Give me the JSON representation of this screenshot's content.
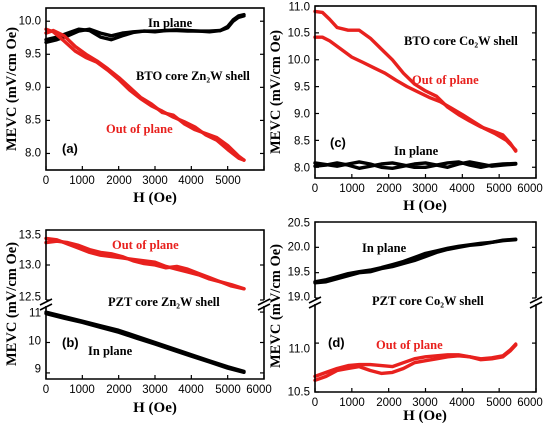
{
  "colors": {
    "in_plane": "#000000",
    "out_of_plane": "#e8211e",
    "axis": "#000000"
  },
  "chart_data": [
    {
      "type": "line",
      "panel_label": "(a)",
      "xlabel": "H (Oe)",
      "ylabel": "MEVC (mV/cm Oe)",
      "xlim": [
        0,
        6000
      ],
      "ylim": [
        7.75,
        10.2
      ],
      "xticks": [
        "0",
        "1000",
        "2000",
        "3000",
        "4000",
        "5000"
      ],
      "yticks": [
        "8.0",
        "8.5",
        "9.0",
        "9.5",
        "10.0"
      ],
      "annotations": [
        {
          "text": "In plane",
          "color": "#000000"
        },
        {
          "text": "BTO core Zn₂W shell",
          "color": "#000000"
        },
        {
          "text": "Out of plane",
          "color": "#e8211e"
        }
      ],
      "series": [
        {
          "name": "In plane",
          "color": "#000000",
          "x": [
            0,
            300,
            600,
            900,
            1200,
            1500,
            1800,
            2100,
            2400,
            2700,
            3000,
            3300,
            3600,
            3900,
            4200,
            4500,
            4800,
            5000,
            5150,
            5300,
            5450
          ],
          "y": [
            9.68,
            9.72,
            9.78,
            9.85,
            9.88,
            9.82,
            9.78,
            9.82,
            9.84,
            9.85,
            9.85,
            9.86,
            9.86,
            9.85,
            9.85,
            9.85,
            9.86,
            9.9,
            10.0,
            10.06,
            10.08
          ]
        },
        {
          "name": "In plane",
          "color": "#000000",
          "x": [
            0,
            300,
            600,
            900,
            1200,
            1500,
            1800,
            2100,
            2400,
            2700,
            3000,
            3300,
            3600,
            3900,
            4200,
            4500,
            4800,
            5000,
            5150,
            5300,
            5450
          ],
          "y": [
            9.72,
            9.76,
            9.82,
            9.88,
            9.86,
            9.76,
            9.72,
            9.78,
            9.83,
            9.85,
            9.84,
            9.86,
            9.87,
            9.86,
            9.85,
            9.84,
            9.86,
            9.92,
            10.02,
            10.08,
            10.1
          ]
        },
        {
          "name": "Out of plane",
          "color": "#e8211e",
          "x": [
            0,
            200,
            500,
            800,
            1100,
            1400,
            1700,
            2000,
            2300,
            2600,
            2900,
            3200,
            3500,
            3800,
            4100,
            4400,
            4700,
            5000,
            5300,
            5450
          ],
          "y": [
            9.88,
            9.84,
            9.7,
            9.55,
            9.45,
            9.38,
            9.26,
            9.12,
            8.96,
            8.83,
            8.72,
            8.64,
            8.55,
            8.48,
            8.4,
            8.28,
            8.2,
            8.06,
            7.93,
            7.9
          ]
        },
        {
          "name": "Out of plane",
          "color": "#e8211e",
          "x": [
            0,
            200,
            500,
            800,
            1100,
            1400,
            1700,
            2000,
            2300,
            2600,
            2900,
            3200,
            3500,
            3800,
            4100,
            4400,
            4700,
            5000,
            5300,
            5450
          ],
          "y": [
            9.82,
            9.86,
            9.78,
            9.62,
            9.5,
            9.4,
            9.28,
            9.15,
            9.0,
            8.85,
            8.75,
            8.62,
            8.58,
            8.45,
            8.36,
            8.3,
            8.24,
            8.12,
            7.96,
            7.9
          ]
        }
      ]
    },
    {
      "type": "line",
      "panel_label": "(c)",
      "xlabel": "H (Oe)",
      "ylabel": "MEVC (mV/cm Oe)",
      "xlim": [
        0,
        6000
      ],
      "ylim": [
        7.8,
        11.0
      ],
      "xticks": [
        "0",
        "1000",
        "2000",
        "3000",
        "4000",
        "5000",
        "6000"
      ],
      "yticks": [
        "8.0",
        "8.5",
        "9.0",
        "9.5",
        "10.0",
        "10.5",
        "11.0"
      ],
      "annotations": [
        {
          "text": "BTO core Co₂W shell",
          "color": "#000000"
        },
        {
          "text": "Out of plane",
          "color": "#e8211e"
        },
        {
          "text": "In plane",
          "color": "#000000"
        }
      ],
      "series": [
        {
          "name": "Out of plane",
          "color": "#e8211e",
          "x": [
            0,
            200,
            400,
            600,
            900,
            1200,
            1500,
            1800,
            2100,
            2400,
            2700,
            3000,
            3300,
            3600,
            3900,
            4200,
            4500,
            4800,
            5100,
            5300,
            5450
          ],
          "y": [
            10.9,
            10.88,
            10.75,
            10.6,
            10.55,
            10.55,
            10.4,
            10.2,
            10.0,
            9.75,
            9.55,
            9.42,
            9.32,
            9.12,
            8.98,
            8.86,
            8.75,
            8.68,
            8.6,
            8.45,
            8.3
          ]
        },
        {
          "name": "Out of plane",
          "color": "#e8211e",
          "x": [
            0,
            200,
            400,
            700,
            1000,
            1300,
            1600,
            1900,
            2200,
            2500,
            2800,
            3100,
            3400,
            3700,
            4000,
            4300,
            4600,
            4900,
            5200,
            5450
          ],
          "y": [
            10.42,
            10.42,
            10.35,
            10.2,
            10.05,
            9.95,
            9.85,
            9.75,
            9.62,
            9.5,
            9.4,
            9.3,
            9.22,
            9.1,
            8.98,
            8.85,
            8.72,
            8.62,
            8.5,
            8.32
          ]
        },
        {
          "name": "In plane",
          "color": "#000000",
          "x": [
            0,
            300,
            600,
            900,
            1200,
            1500,
            1800,
            2100,
            2400,
            2700,
            3000,
            3300,
            3600,
            3900,
            4200,
            4500,
            4800,
            5100,
            5450
          ],
          "y": [
            8.08,
            8.05,
            8.02,
            8.06,
            8.1,
            8.06,
            8.0,
            7.98,
            8.02,
            8.06,
            8.08,
            8.04,
            8.0,
            8.06,
            8.1,
            8.06,
            8.02,
            8.04,
            8.06
          ]
        },
        {
          "name": "In plane",
          "color": "#000000",
          "x": [
            0,
            300,
            600,
            900,
            1200,
            1500,
            1800,
            2100,
            2400,
            2700,
            3000,
            3300,
            3600,
            3900,
            4200,
            4500,
            4800,
            5100,
            5450
          ],
          "y": [
            8.02,
            8.04,
            8.08,
            8.04,
            7.98,
            8.02,
            8.06,
            8.08,
            8.04,
            8.0,
            8.0,
            8.04,
            8.08,
            8.1,
            8.04,
            8.0,
            8.04,
            8.06,
            8.07
          ]
        }
      ]
    },
    {
      "type": "line",
      "panel_label": "(b)",
      "xlabel": "H (Oe)",
      "ylabel": "MEVC (mV/cm Oe)",
      "xlim": [
        0,
        6000
      ],
      "ylim_upper": [
        12.5,
        13.5
      ],
      "ylim_lower": [
        8.8,
        11.2
      ],
      "axis_break": true,
      "xticks": [
        "0",
        "1000",
        "2000",
        "3000",
        "4000",
        "5000",
        "6000"
      ],
      "yticks_upper": [
        "12.5",
        "13.0",
        "13.5"
      ],
      "yticks_lower": [
        "9",
        "10",
        "11"
      ],
      "annotations": [
        {
          "text": "Out of plane",
          "color": "#e8211e"
        },
        {
          "text": "PZT core Zn₂W shell",
          "color": "#000000"
        },
        {
          "text": "In plane",
          "color": "#000000"
        }
      ],
      "series": [
        {
          "name": "Out of plane",
          "color": "#e8211e",
          "segment": "upper",
          "x": [
            0,
            300,
            600,
            900,
            1200,
            1500,
            1800,
            2100,
            2400,
            2700,
            3000,
            3300,
            3600,
            3900,
            4200,
            4500,
            4800,
            5100,
            5450
          ],
          "y": [
            13.38,
            13.36,
            13.3,
            13.24,
            13.18,
            13.14,
            13.12,
            13.1,
            13.08,
            13.06,
            13.04,
            12.98,
            12.94,
            12.9,
            12.86,
            12.8,
            12.76,
            12.72,
            12.66
          ]
        },
        {
          "name": "Out of plane",
          "color": "#e8211e",
          "segment": "upper",
          "x": [
            0,
            300,
            600,
            900,
            1200,
            1500,
            1800,
            2100,
            2400,
            2700,
            3000,
            3300,
            3600,
            3900,
            4200,
            4500,
            4800,
            5100,
            5450
          ],
          "y": [
            13.32,
            13.34,
            13.32,
            13.28,
            13.22,
            13.18,
            13.16,
            13.12,
            13.06,
            13.02,
            13.0,
            12.96,
            12.98,
            12.94,
            12.88,
            12.82,
            12.76,
            12.7,
            12.66
          ]
        },
        {
          "name": "In plane",
          "color": "#000000",
          "segment": "lower",
          "x": [
            0,
            500,
            1000,
            1500,
            2000,
            2500,
            3000,
            3500,
            4000,
            4500,
            5000,
            5450
          ],
          "y": [
            11.0,
            10.85,
            10.7,
            10.55,
            10.4,
            10.2,
            10.0,
            9.8,
            9.6,
            9.4,
            9.2,
            9.05
          ]
        },
        {
          "name": "In plane",
          "color": "#000000",
          "segment": "lower",
          "x": [
            0,
            500,
            1000,
            1500,
            2000,
            2500,
            3000,
            3500,
            4000,
            4500,
            5000,
            5450
          ],
          "y": [
            10.95,
            10.8,
            10.66,
            10.5,
            10.34,
            10.14,
            9.95,
            9.75,
            9.55,
            9.36,
            9.16,
            9.02
          ]
        }
      ]
    },
    {
      "type": "line",
      "panel_label": "(d)",
      "xlabel": "H (Oe)",
      "ylabel": "MEVC (mV/cm Oe)",
      "xlim": [
        0,
        6000
      ],
      "ylim_upper": [
        19.0,
        20.5
      ],
      "ylim_lower": [
        10.5,
        11.4
      ],
      "axis_break": true,
      "xticks": [
        "0",
        "1000",
        "2000",
        "3000",
        "4000",
        "5000",
        "6000"
      ],
      "yticks_upper": [
        "19.0",
        "19.5",
        "20.0",
        "20.5"
      ],
      "yticks_lower": [
        "10.5",
        "11.0"
      ],
      "annotations": [
        {
          "text": "In plane",
          "color": "#000000"
        },
        {
          "text": "PZT core Co₂W shell",
          "color": "#000000"
        },
        {
          "text": "Out of plane",
          "color": "#e8211e"
        }
      ],
      "series": [
        {
          "name": "In plane",
          "color": "#000000",
          "segment": "upper",
          "x": [
            0,
            300,
            600,
            900,
            1200,
            1500,
            1800,
            2100,
            2400,
            2700,
            3000,
            3300,
            3600,
            3900,
            4200,
            4500,
            4800,
            5100,
            5450
          ],
          "y": [
            19.32,
            19.36,
            19.42,
            19.48,
            19.52,
            19.55,
            19.6,
            19.66,
            19.72,
            19.8,
            19.88,
            19.93,
            19.98,
            20.02,
            20.05,
            20.08,
            20.1,
            20.14,
            20.16
          ]
        },
        {
          "name": "In plane",
          "color": "#000000",
          "segment": "upper",
          "x": [
            0,
            300,
            600,
            900,
            1200,
            1500,
            1800,
            2100,
            2400,
            2700,
            3000,
            3300,
            3600,
            3900,
            4200,
            4500,
            4800,
            5100,
            5450
          ],
          "y": [
            19.3,
            19.32,
            19.38,
            19.44,
            19.5,
            19.52,
            19.58,
            19.62,
            19.68,
            19.74,
            19.82,
            19.9,
            19.96,
            20.0,
            20.04,
            20.06,
            20.1,
            20.13,
            20.15
          ]
        },
        {
          "name": "Out of plane",
          "color": "#e8211e",
          "segment": "lower",
          "x": [
            0,
            300,
            600,
            900,
            1200,
            1500,
            1800,
            2100,
            2400,
            2700,
            3000,
            3300,
            3600,
            3900,
            4200,
            4500,
            4800,
            5100,
            5300,
            5450
          ],
          "y": [
            10.66,
            10.7,
            10.74,
            10.77,
            10.78,
            10.78,
            10.77,
            10.76,
            10.8,
            10.84,
            10.86,
            10.87,
            10.88,
            10.88,
            10.86,
            10.84,
            10.85,
            10.87,
            10.93,
            10.99
          ]
        },
        {
          "name": "Out of plane",
          "color": "#e8211e",
          "segment": "lower",
          "x": [
            0,
            300,
            600,
            900,
            1200,
            1500,
            1800,
            2100,
            2400,
            2700,
            3000,
            3300,
            3600,
            3900,
            4200,
            4500,
            4800,
            5100,
            5300,
            5450
          ],
          "y": [
            10.62,
            10.66,
            10.72,
            10.74,
            10.76,
            10.72,
            10.69,
            10.7,
            10.74,
            10.8,
            10.82,
            10.84,
            10.86,
            10.87,
            10.86,
            10.83,
            10.84,
            10.86,
            10.92,
            10.98
          ]
        }
      ]
    }
  ]
}
